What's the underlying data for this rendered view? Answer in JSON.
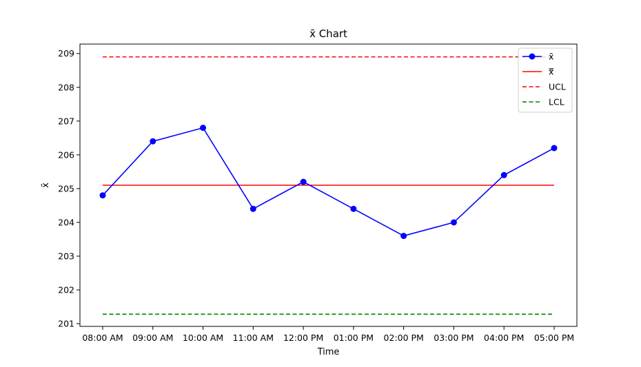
{
  "chart_data": {
    "type": "line",
    "title": "x̄ Chart",
    "xlabel": "Time",
    "ylabel": "x̄",
    "categories": [
      "08:00 AM",
      "09:00 AM",
      "10:00 AM",
      "11:00 AM",
      "12:00 PM",
      "01:00 PM",
      "02:00 PM",
      "03:00 PM",
      "04:00 PM",
      "05:00 PM"
    ],
    "yticks": [
      201,
      202,
      203,
      204,
      205,
      206,
      207,
      208,
      209
    ],
    "ylim": [
      200.92,
      209.28
    ],
    "grid": false,
    "legend_position": "top-right",
    "series": [
      {
        "name": "x̄",
        "style": "line-marker",
        "color": "#0000ff",
        "values": [
          204.8,
          206.4,
          206.8,
          204.4,
          205.2,
          204.4,
          203.6,
          204.0,
          205.4,
          206.2
        ]
      },
      {
        "name": "x̿",
        "style": "solid",
        "color": "#ff0000",
        "values": [
          205.1,
          205.1,
          205.1,
          205.1,
          205.1,
          205.1,
          205.1,
          205.1,
          205.1,
          205.1
        ]
      },
      {
        "name": "UCL",
        "style": "dashed",
        "color": "#ff0000",
        "values": [
          208.9,
          208.9,
          208.9,
          208.9,
          208.9,
          208.9,
          208.9,
          208.9,
          208.9,
          208.9
        ]
      },
      {
        "name": "LCL",
        "style": "dashed",
        "color": "#008000",
        "values": [
          201.28,
          201.28,
          201.28,
          201.28,
          201.28,
          201.28,
          201.28,
          201.28,
          201.28,
          201.28
        ]
      }
    ]
  }
}
